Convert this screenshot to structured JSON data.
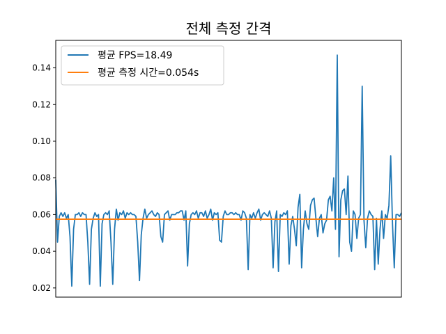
{
  "chart_data": {
    "type": "line",
    "title": "전체 측정 간격",
    "xlabel": "",
    "ylabel": "",
    "xlim": [
      0,
      199
    ],
    "ylim": [
      0.015,
      0.155
    ],
    "yticks": [
      0.02,
      0.04,
      0.06,
      0.08,
      0.1,
      0.12,
      0.14
    ],
    "ytick_labels": [
      "0.02",
      "0.04",
      "0.06",
      "0.08",
      "0.10",
      "0.12",
      "0.14"
    ],
    "grid": false,
    "legend_position": "top-left",
    "series": [
      {
        "name": "평균 FPS=18.49",
        "color": "#1f77b4",
        "values": [
          0.079,
          0.045,
          0.059,
          0.061,
          0.059,
          0.061,
          0.058,
          0.06,
          0.048,
          0.021,
          0.052,
          0.06,
          0.06,
          0.061,
          0.059,
          0.061,
          0.06,
          0.06,
          0.045,
          0.022,
          0.052,
          0.058,
          0.061,
          0.059,
          0.06,
          0.021,
          0.055,
          0.06,
          0.061,
          0.06,
          0.062,
          0.045,
          0.022,
          0.052,
          0.063,
          0.057,
          0.061,
          0.06,
          0.062,
          0.058,
          0.061,
          0.06,
          0.061,
          0.06,
          0.06,
          0.059,
          0.045,
          0.024,
          0.049,
          0.058,
          0.063,
          0.058,
          0.06,
          0.061,
          0.062,
          0.06,
          0.059,
          0.061,
          0.06,
          0.048,
          0.045,
          0.06,
          0.061,
          0.062,
          0.057,
          0.06,
          0.06,
          0.06,
          0.061,
          0.061,
          0.062,
          0.062,
          0.057,
          0.062,
          0.032,
          0.055,
          0.06,
          0.061,
          0.06,
          0.062,
          0.058,
          0.061,
          0.061,
          0.059,
          0.062,
          0.058,
          0.06,
          0.063,
          0.057,
          0.061,
          0.06,
          0.061,
          0.046,
          0.045,
          0.059,
          0.062,
          0.06,
          0.06,
          0.061,
          0.061,
          0.06,
          0.061,
          0.06,
          0.06,
          0.057,
          0.062,
          0.061,
          0.058,
          0.03,
          0.06,
          0.058,
          0.061,
          0.058,
          0.061,
          0.063,
          0.057,
          0.06,
          0.061,
          0.06,
          0.059,
          0.062,
          0.058,
          0.031,
          0.056,
          0.062,
          0.029,
          0.06,
          0.059,
          0.061,
          0.06,
          0.062,
          0.033,
          0.054,
          0.059,
          0.052,
          0.043,
          0.064,
          0.071,
          0.031,
          0.052,
          0.062,
          0.055,
          0.052,
          0.065,
          0.068,
          0.069,
          0.058,
          0.048,
          0.058,
          0.06,
          0.05,
          0.055,
          0.057,
          0.068,
          0.07,
          0.062,
          0.08,
          0.052,
          0.147,
          0.037,
          0.068,
          0.073,
          0.074,
          0.06,
          0.081,
          0.045,
          0.04,
          0.062,
          0.06,
          0.047,
          0.058,
          0.06,
          0.13,
          0.057,
          0.042,
          0.058,
          0.062,
          0.06,
          0.059,
          0.03,
          0.058,
          0.033,
          0.052,
          0.062,
          0.047,
          0.06,
          0.058,
          0.065,
          0.092,
          0.055,
          0.031,
          0.06,
          0.06,
          0.059,
          0.061
        ]
      },
      {
        "name": "평균 측정 시간=0.054s",
        "color": "#ff7f0e",
        "values": [
          0.0575,
          0.0575
        ]
      }
    ]
  }
}
